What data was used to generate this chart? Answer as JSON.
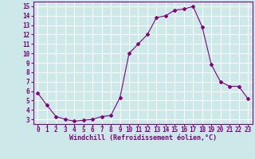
{
  "x": [
    0,
    1,
    2,
    3,
    4,
    5,
    6,
    7,
    8,
    9,
    10,
    11,
    12,
    13,
    14,
    15,
    16,
    17,
    18,
    19,
    20,
    21,
    22,
    23
  ],
  "y": [
    5.8,
    4.5,
    3.3,
    3.0,
    2.8,
    2.9,
    3.0,
    3.3,
    3.4,
    5.3,
    10.0,
    11.0,
    12.0,
    13.8,
    14.0,
    14.6,
    14.7,
    15.0,
    12.8,
    8.8,
    7.0,
    6.5,
    6.5,
    5.2
  ],
  "line_color": "#800080",
  "marker": "D",
  "marker_size": 2,
  "bg_color": "#cce8e8",
  "grid_color": "#ffffff",
  "xlabel": "Windchill (Refroidissement éolien,°C)",
  "xlabel_color": "#800080",
  "ylabel_ticks": [
    3,
    4,
    5,
    6,
    7,
    8,
    9,
    10,
    11,
    12,
    13,
    14,
    15
  ],
  "xlim": [
    -0.5,
    23.5
  ],
  "ylim": [
    2.5,
    15.5
  ],
  "tick_color": "#800080",
  "font_color": "#800080",
  "tick_fontsize": 5.5,
  "xlabel_fontsize": 6.0
}
